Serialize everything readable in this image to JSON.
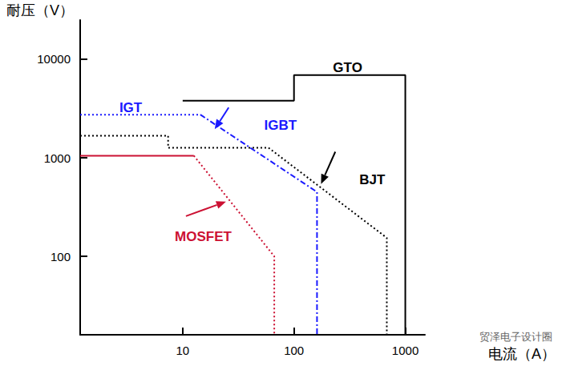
{
  "chart_data": {
    "type": "line",
    "log": true,
    "grid": false,
    "subtitle": "贸泽电子设计圈",
    "x_label": "电流（A）",
    "y_label": "耐压（V）",
    "xlim": [
      1.2,
      1500
    ],
    "ylim": [
      16,
      25000
    ],
    "xticks": [
      10,
      100,
      1000
    ],
    "yticks": [
      100,
      1000,
      10000
    ],
    "series": [
      {
        "name": "GTO",
        "color": "#000000",
        "line_style": "solid",
        "x": [
          10,
          100,
          100,
          1000,
          1000
        ],
        "values": [
          3800,
          3800,
          6900,
          6900,
          16
        ]
      },
      {
        "name": "IGT",
        "color": "#1a1aff",
        "line_style": "dotted",
        "x": [
          1.2,
          14.4
        ],
        "values": [
          2740,
          2740
        ]
      },
      {
        "name": "IGBT",
        "color": "#1a1aff",
        "line_style": "dashdot",
        "x": [
          14.4,
          161,
          161
        ],
        "values": [
          2740,
          450,
          16
        ]
      },
      {
        "name": "BJT",
        "color": "#000000",
        "line_style": "dotted",
        "x": [
          1.2,
          7.4,
          7.4,
          59,
          682,
          682
        ],
        "values": [
          1676,
          1676,
          1265,
          1265,
          154,
          16
        ]
      },
      {
        "name": "MOSFET",
        "color": "#cc1133",
        "line_style": "solid",
        "x": [
          1.2,
          12.6
        ],
        "values": [
          1050,
          1050
        ]
      },
      {
        "name": "MOSFET",
        "color": "#cc1133",
        "line_style": "dotted",
        "x": [
          12.6,
          66.5,
          66.5
        ],
        "values": [
          1050,
          100,
          16
        ]
      }
    ],
    "annotations": [
      {
        "text": "GTO",
        "x": 224,
        "y": 8280,
        "color": "#000000"
      },
      {
        "text": "IGT",
        "x": 2.7,
        "y": 3240,
        "color": "#1a1aff"
      },
      {
        "text": "IGBT",
        "x": 54,
        "y": 2140,
        "color": "#1a1aff",
        "arrow_from": [
          25.9,
          3240
        ],
        "arrow_to": [
          19.4,
          1950
        ]
      },
      {
        "text": "BJT",
        "x": 387,
        "y": 597,
        "color": "#000000",
        "arrow_from": [
          235,
          1151
        ],
        "arrow_to": [
          175,
          543
        ]
      },
      {
        "text": "MOSFET",
        "x": 8.5,
        "y": 157,
        "color": "#cc1133",
        "arrow_from": [
          10.7,
          256
        ],
        "arrow_to": [
          24.5,
          359
        ]
      }
    ]
  }
}
